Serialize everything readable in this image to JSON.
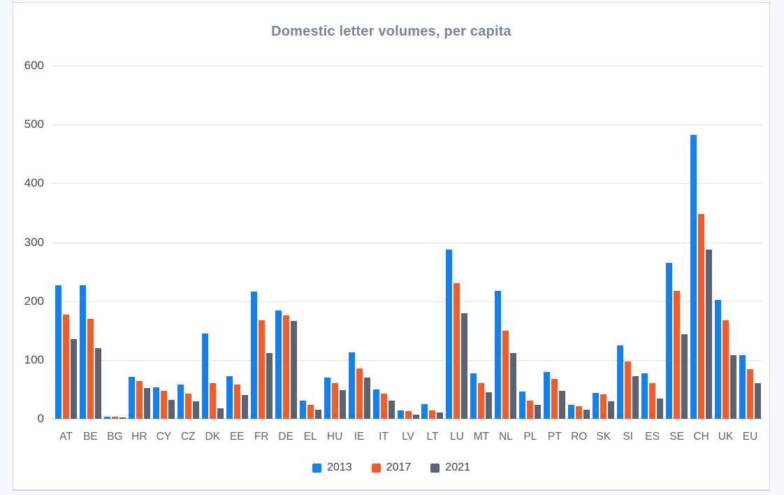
{
  "chart_data": {
    "type": "bar",
    "title": "Domestic letter volumes, per capita",
    "categories": [
      "AT",
      "BE",
      "BG",
      "HR",
      "CY",
      "CZ",
      "DK",
      "EE",
      "FR",
      "DE",
      "EL",
      "HU",
      "IE",
      "IT",
      "LV",
      "LT",
      "LU",
      "MT",
      "NL",
      "PL",
      "PT",
      "RO",
      "SK",
      "SI",
      "ES",
      "SE",
      "CH",
      "UK",
      "EU"
    ],
    "series": [
      {
        "name": "2013",
        "color": "#0f80f5",
        "values": [
          227,
          227,
          4,
          71,
          54,
          58,
          145,
          73,
          216,
          184,
          31,
          70,
          113,
          50,
          14,
          25,
          287,
          77,
          217,
          46,
          80,
          24,
          44,
          125,
          77,
          265,
          482,
          202,
          108
        ]
      },
      {
        "name": "2017",
        "color": "#fb5a28",
        "values": [
          177,
          170,
          4,
          64,
          48,
          43,
          61,
          58,
          168,
          176,
          24,
          61,
          85,
          43,
          13,
          14,
          230,
          60,
          150,
          31,
          68,
          21,
          41,
          97,
          60,
          217,
          348,
          167,
          84
        ]
      },
      {
        "name": "2021",
        "color": "#5b6370",
        "values": [
          135,
          120,
          2,
          52,
          32,
          30,
          18,
          40,
          112,
          166,
          15,
          49,
          70,
          31,
          7,
          11,
          179,
          45,
          112,
          24,
          47,
          16,
          30,
          72,
          34,
          144,
          287,
          108,
          61
        ]
      }
    ],
    "ylim": [
      0,
      600
    ],
    "yticks": [
      0,
      100,
      200,
      300,
      400,
      500,
      600
    ],
    "grid": true,
    "legend_position": "bottom",
    "colors": {
      "background": "#f5f9fd",
      "card": "#ffffff",
      "gridline": "#e4e4e6",
      "title_text": "#7c8496",
      "axis_text": "#44474c"
    }
  }
}
